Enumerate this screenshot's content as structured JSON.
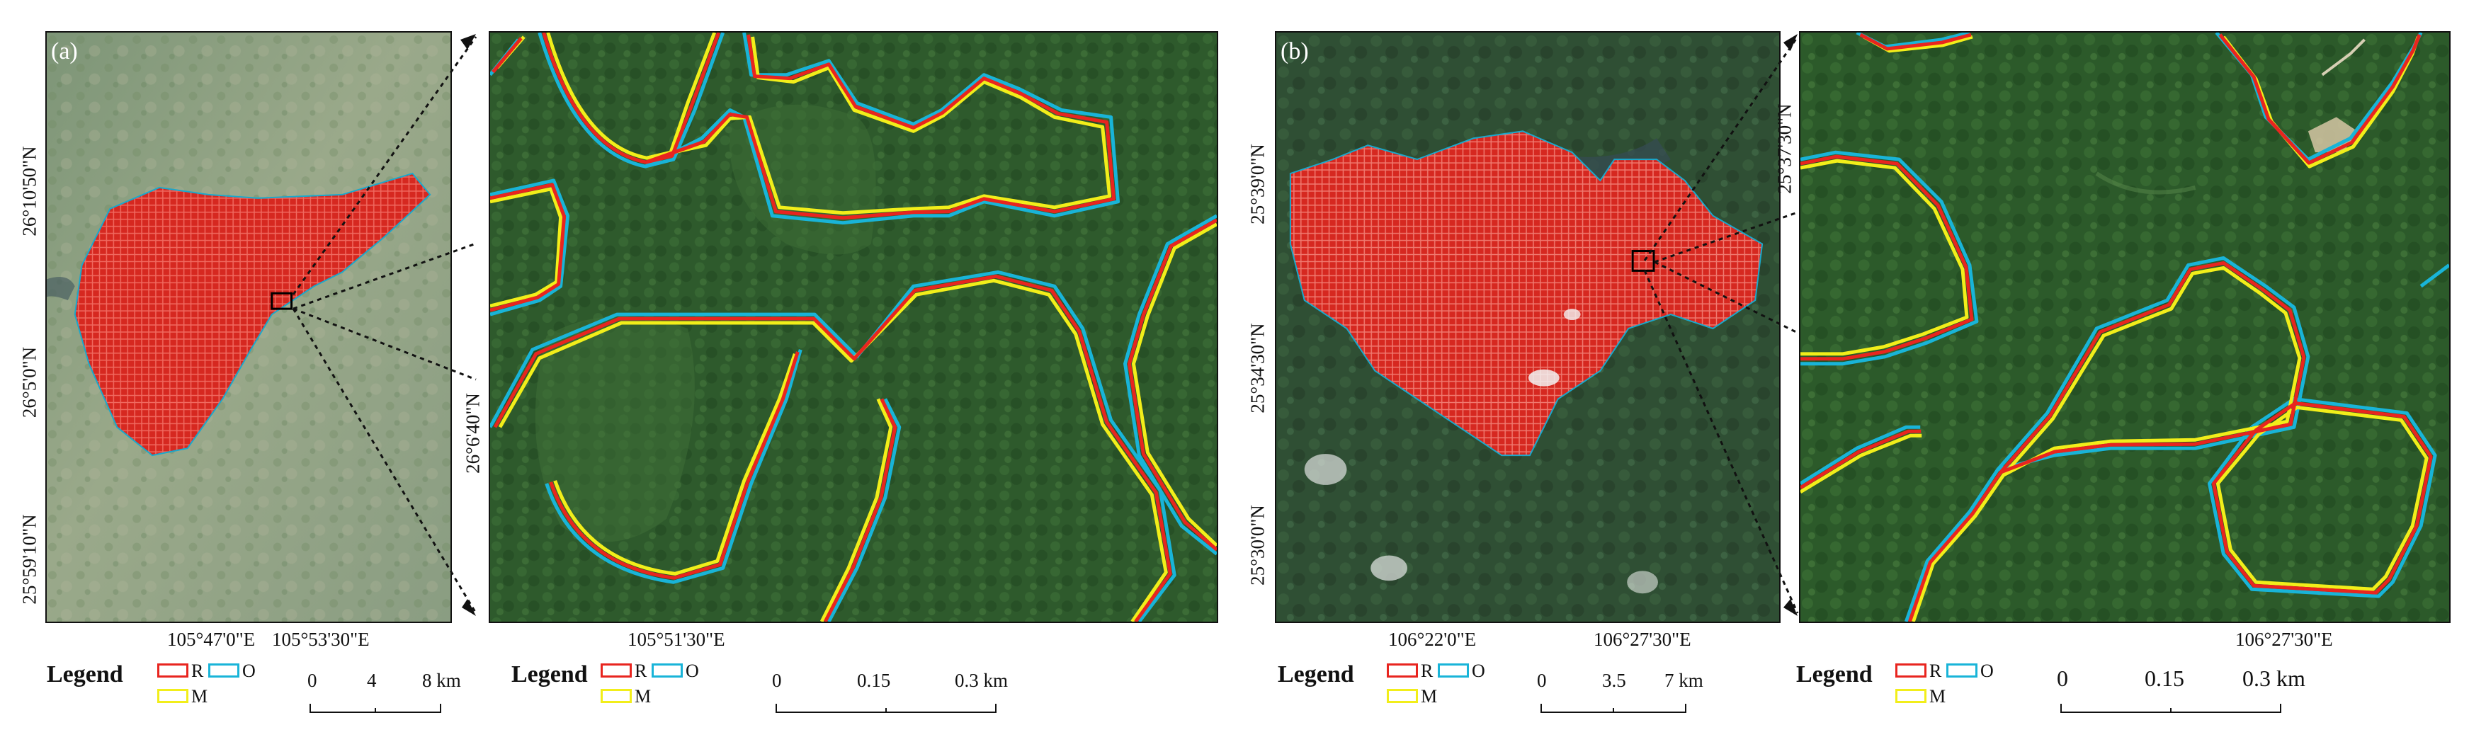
{
  "colors": {
    "R": "#e8251f",
    "O": "#19b4d8",
    "M": "#f2ee1a"
  },
  "panel_a": {
    "tag": "(a)",
    "lat_labels": [
      "26°10'50\"N",
      "26°5'0\"N",
      "25°59'10\"N"
    ],
    "lon_labels": [
      "105°47'0\"E",
      "105°53'30\"E"
    ],
    "legend": {
      "title": "Legend",
      "items": [
        "R",
        "O",
        "M"
      ]
    },
    "scale": {
      "ticks": [
        "0",
        "4",
        "8 km"
      ]
    }
  },
  "zoom_a": {
    "lat_labels": [
      "26°6'40\"N"
    ],
    "lon_labels": [
      "105°51'30\"E"
    ],
    "legend": {
      "title": "Legend",
      "items": [
        "R",
        "O",
        "M"
      ]
    },
    "scale": {
      "ticks": [
        "0",
        "0.15",
        "0.3 km"
      ]
    }
  },
  "panel_b": {
    "tag": "(b)",
    "lat_labels": [
      "25°39'0\"N",
      "25°34'30\"N",
      "25°30'0\"N"
    ],
    "lon_labels": [
      "106°22'0\"E",
      "106°27'30\"E"
    ],
    "legend": {
      "title": "Legend",
      "items": [
        "R",
        "O",
        "M"
      ]
    },
    "scale": {
      "ticks": [
        "0",
        "3.5",
        "7 km"
      ]
    }
  },
  "zoom_b": {
    "lat_labels": [
      "25°37'30\"N"
    ],
    "lon_labels": [
      "106°27'30\"E"
    ],
    "legend": {
      "title": "Legend",
      "items": [
        "R",
        "O",
        "M"
      ]
    },
    "scale": {
      "ticks": [
        "0",
        "0.15",
        "0.3 km"
      ]
    }
  }
}
